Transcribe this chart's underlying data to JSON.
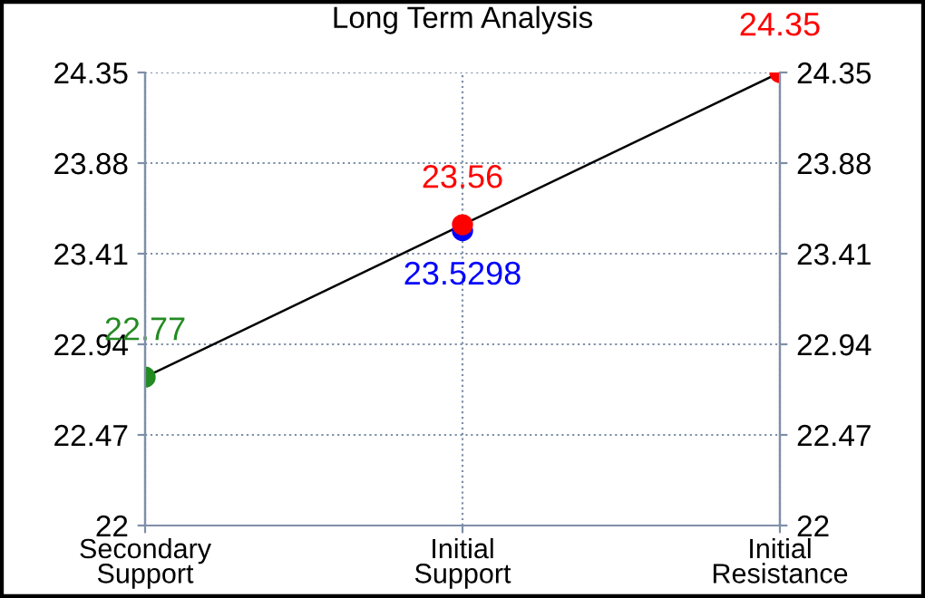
{
  "chart_data": {
    "type": "line",
    "title": "Long Term Analysis",
    "categories": [
      "Secondary\nSupport",
      "Initial\nSupport",
      "Initial\nResistance"
    ],
    "ylim": [
      22,
      24.35
    ],
    "yticks": [
      22,
      22.47,
      22.94,
      23.41,
      23.88,
      24.35
    ],
    "y2lim": [
      22,
      24.35
    ],
    "y2ticks": [
      22,
      22.47,
      22.94,
      23.41,
      23.88,
      24.35
    ],
    "grid": true,
    "marker": "circle",
    "data_labels": true,
    "series": [
      {
        "color": "#000000",
        "colors": [
          "#228b22",
          "#ff0000",
          "#ff0000"
        ],
        "values": [
          22.77,
          23.56,
          24.35
        ]
      },
      {
        "type": "scatter",
        "color": "#0000ff",
        "values": [
          null,
          23.5298,
          null
        ]
      }
    ]
  }
}
